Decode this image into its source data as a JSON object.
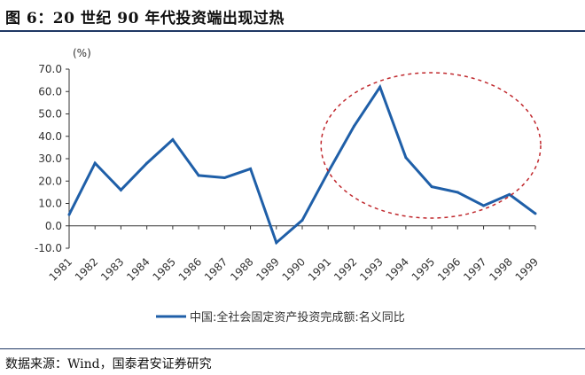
{
  "figure": {
    "title": "图 6：20 世纪 90 年代投资端出现过热",
    "source": "数据来源：Wind，国泰君安证券研究"
  },
  "chart_data": {
    "type": "line",
    "unit_label": "(%)",
    "x": [
      "1981",
      "1982",
      "1983",
      "1984",
      "1985",
      "1986",
      "1987",
      "1988",
      "1989",
      "1990",
      "1991",
      "1992",
      "1993",
      "1994",
      "1995",
      "1996",
      "1997",
      "1998",
      "1999"
    ],
    "series": [
      {
        "name": "中国:全社会固定资产投资完成额:名义同比",
        "color": "#1f5fa8",
        "values": [
          5.0,
          28.0,
          16.0,
          28.0,
          38.5,
          22.5,
          21.5,
          25.5,
          -7.5,
          2.5,
          24.0,
          44.5,
          62.0,
          30.5,
          17.5,
          15.0,
          9.0,
          14.0,
          5.5
        ]
      }
    ],
    "ylim": [
      -10,
      70
    ],
    "yticks": [
      "-10.0",
      "0.0",
      "10.0",
      "20.0",
      "30.0",
      "40.0",
      "50.0",
      "60.0",
      "70.0"
    ],
    "legend_position": "bottom",
    "grid": false,
    "annotation": {
      "type": "dashed-ellipse",
      "color": "#c0282d",
      "x_from": "1991",
      "x_to": "1999"
    }
  }
}
